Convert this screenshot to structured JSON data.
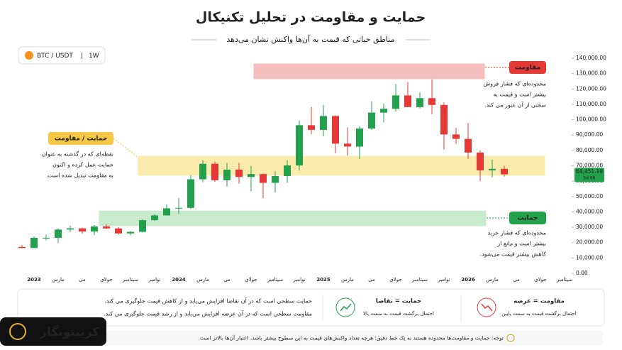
{
  "chart_data": {
    "type": "candlestick",
    "title": "حمایت و مقاومت در تحلیل تکنیکال",
    "subtitle": "مناطق حیاتی که قیمت به آن‌ها واکنش نشان می‌دهد",
    "pair": "BTC / USDT",
    "interval": "1W",
    "up_color": "#22a04b",
    "down_color": "#e53935",
    "ylim": [
      0,
      140000
    ],
    "yticks": [
      {
        "value": 0,
        "label": "0.00"
      },
      {
        "value": 10000,
        "label": "10,000.00"
      },
      {
        "value": 20000,
        "label": "20,000.00"
      },
      {
        "value": 30000,
        "label": "30,000.00"
      },
      {
        "value": 40000,
        "label": "40,000.00"
      },
      {
        "value": 50000,
        "label": "50,000.00"
      },
      {
        "value": 60000,
        "label": "60,000.00"
      },
      {
        "value": 70000,
        "label": "70,000.00"
      },
      {
        "value": 80000,
        "label": "80,000.00"
      },
      {
        "value": 90000,
        "label": "90,000.00"
      },
      {
        "value": 100000,
        "label": "100,000.00"
      },
      {
        "value": 110000,
        "label": "110,000.00"
      },
      {
        "value": 120000,
        "label": "120,000.00"
      },
      {
        "value": 130000,
        "label": "130,000.00"
      },
      {
        "value": 140000,
        "label": "140,000.00"
      }
    ],
    "xticks": [
      "2023",
      "مارس",
      "می",
      "جولای",
      "سپتامبر",
      "نوامبر",
      "2024",
      "مارس",
      "می",
      "جولای",
      "سپتامبر",
      "نوامبر",
      "2025",
      "مارس",
      "می",
      "جولای",
      "سپتامبر",
      "نوامبر",
      "2026",
      "مارس",
      "می",
      "جولای",
      "سپتامبر"
    ],
    "ohlc": [
      [
        17200,
        18400,
        16300,
        16500
      ],
      [
        16500,
        23900,
        16500,
        23100
      ],
      [
        23100,
        25200,
        21400,
        23100
      ],
      [
        23100,
        29200,
        19600,
        28500
      ],
      [
        28500,
        31000,
        26900,
        29300
      ],
      [
        29300,
        29800,
        25800,
        27200
      ],
      [
        27200,
        31400,
        24800,
        30500
      ],
      [
        30500,
        31800,
        28900,
        29200
      ],
      [
        29200,
        30100,
        25200,
        26000
      ],
      [
        26000,
        27500,
        24900,
        27000
      ],
      [
        27000,
        35200,
        26600,
        34600
      ],
      [
        34600,
        38400,
        34100,
        37700
      ],
      [
        37700,
        44700,
        37600,
        42300
      ],
      [
        42300,
        48900,
        38600,
        42600
      ],
      [
        42600,
        63900,
        41900,
        61200
      ],
      [
        61200,
        73800,
        59300,
        71300
      ],
      [
        71300,
        72800,
        59600,
        60600
      ],
      [
        60600,
        71900,
        56600,
        67500
      ],
      [
        67500,
        71900,
        58400,
        62700
      ],
      [
        62700,
        70000,
        53500,
        64600
      ],
      [
        64600,
        65000,
        49000,
        58900
      ],
      [
        58900,
        66500,
        52600,
        63300
      ],
      [
        63300,
        73600,
        58900,
        70200
      ],
      [
        70200,
        99600,
        66800,
        96400
      ],
      [
        96400,
        108300,
        90500,
        93400
      ],
      [
        93400,
        109600,
        89200,
        102400
      ],
      [
        102400,
        102800,
        78200,
        84400
      ],
      [
        84400,
        95000,
        76600,
        82500
      ],
      [
        82500,
        95800,
        74400,
        94200
      ],
      [
        94200,
        111900,
        93400,
        104600
      ],
      [
        104600,
        110500,
        98200,
        107100
      ],
      [
        107100,
        123200,
        105200,
        115800
      ],
      [
        115800,
        124500,
        108100,
        108200
      ],
      [
        108200,
        117900,
        107300,
        114000
      ],
      [
        114000,
        126200,
        103500,
        109600
      ],
      [
        109600,
        111200,
        80600,
        90400
      ],
      [
        90400,
        94600,
        84400,
        87500
      ],
      [
        87500,
        97900,
        74500,
        78600
      ],
      [
        78600,
        80000,
        60000,
        67000
      ],
      [
        67000,
        74000,
        62500,
        68000
      ],
      [
        68000,
        70000,
        63000,
        64451.19
      ]
    ],
    "last_price": {
      "value": 64451.19,
      "label": "64,451.19"
    },
    "countdown": "5d 6h",
    "zones": [
      {
        "label": "مقاومت",
        "range": [
          126600,
          136300
        ],
        "color": "#f6b3b3",
        "text": [
          "محدوده‌ای که فشار فروش",
          "بیشتر است و قیمت به",
          "سختی از آن عبور می کند."
        ]
      },
      {
        "label": "حمایت / مقاومت",
        "range": [
          63800,
          76200
        ],
        "color": "#fbe9a0",
        "text": [
          "نقطه‌ای که در گذشته به عنوان",
          "حمایت عمل کرده و اکنون",
          "به مقاومت تبدیل شده است."
        ]
      },
      {
        "label": "حمایت",
        "range": [
          31000,
          40600
        ],
        "color": "#bfe8c6",
        "text": [
          "محدوده‌ای که فشار خرید",
          "بیشتر است و مانع از",
          "کاهش بیشتر قیمت می‌شود."
        ]
      }
    ],
    "legend": [
      {
        "title": "مقاومت = عرضه",
        "text": "احتمال برگشت قیمت به سمت پایین"
      },
      {
        "title": "حمایت = تقاضا",
        "text": "احتمال برگشت قیمت به سمت بالا"
      }
    ],
    "definitions": [
      "حمایت سطحی است که در آن تقاضا افزایش می‌یابد و از کاهش قیمت جلوگیری می کند.",
      "مقاومت سطحی است که در آن عرضه افزایش می‌یابد و از رشد قیمت جلوگیری می کند."
    ],
    "note": "توجه: حمایت و مقاومت‌ها محدوده هستند نه یک خط دقیق؛ هرچه تعداد واکنش‌های قیمت به این سطوح بیشتر باشد، اعتبار آن‌ها بالاتر است.",
    "brand": "کریپتونگار"
  }
}
